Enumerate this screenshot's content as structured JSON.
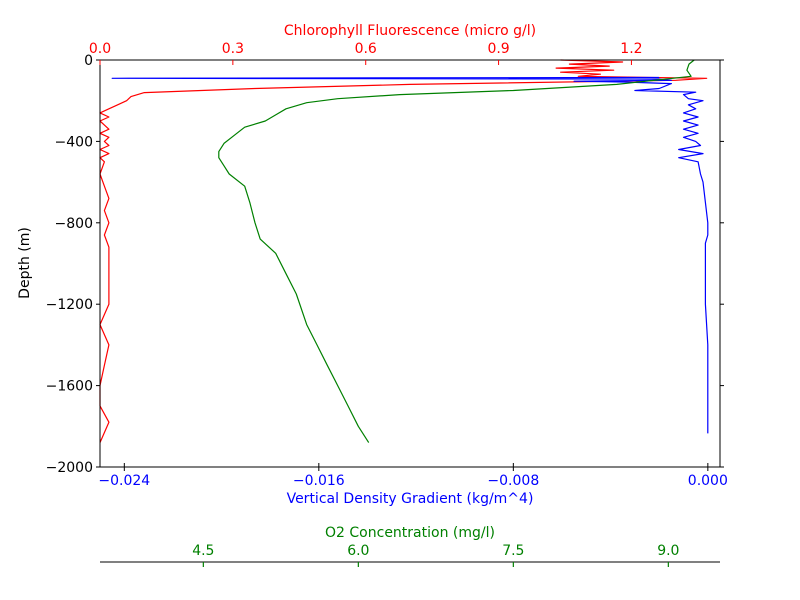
{
  "chart_data": {
    "type": "line",
    "ylabel": "Depth (m)",
    "ylim": [
      -2000,
      0
    ],
    "y_ticks": [
      "0",
      "−400",
      "−800",
      "−1200",
      "−1600",
      "−2000"
    ],
    "y_tick_values": [
      0,
      -400,
      -800,
      -1200,
      -1600,
      -2000
    ],
    "axes": {
      "chlorophyll": {
        "label": "Chlorophyll Fluorescence (micro g/l)",
        "color": "#ff0000",
        "position": "top",
        "xlim": [
          0.0,
          1.4
        ],
        "ticks": [
          "0.0",
          "0.3",
          "0.6",
          "0.9",
          "1.2"
        ],
        "tick_values": [
          0.0,
          0.3,
          0.6,
          0.9,
          1.2
        ]
      },
      "density": {
        "label": "Vertical Density Gradient (kg/m^4)",
        "color": "#0000ff",
        "position": "bottom",
        "xlim": [
          -0.025,
          0.0005
        ],
        "ticks": [
          "−0.024",
          "−0.016",
          "−0.008",
          "0.000"
        ],
        "tick_values": [
          -0.024,
          -0.016,
          -0.008,
          0.0
        ]
      },
      "o2": {
        "label": "O2 Concentration (mg/l)",
        "color": "#008000",
        "position": "bottom-offset",
        "xlim": [
          3.5,
          9.5
        ],
        "ticks": [
          "4.5",
          "6.0",
          "7.5",
          "9.0"
        ],
        "tick_values": [
          4.5,
          6.0,
          7.5,
          9.0
        ]
      }
    },
    "series": [
      {
        "axis": "chlorophyll",
        "color": "#ff0000",
        "points": [
          [
            1.04,
            0
          ],
          [
            1.18,
            -10
          ],
          [
            1.06,
            -20
          ],
          [
            1.15,
            -30
          ],
          [
            1.03,
            -40
          ],
          [
            1.16,
            -50
          ],
          [
            1.04,
            -60
          ],
          [
            1.13,
            -70
          ],
          [
            1.08,
            -80
          ],
          [
            1.37,
            -90
          ],
          [
            1.3,
            -100
          ],
          [
            0.7,
            -120
          ],
          [
            0.35,
            -140
          ],
          [
            0.1,
            -160
          ],
          [
            0.07,
            -180
          ],
          [
            0.06,
            -200
          ],
          [
            0.04,
            -220
          ],
          [
            0.02,
            -240
          ],
          [
            0.0,
            -260
          ],
          [
            0.02,
            -280
          ],
          [
            0.0,
            -300
          ],
          [
            0.01,
            -320
          ],
          [
            0.02,
            -340
          ],
          [
            0.0,
            -360
          ],
          [
            0.02,
            -380
          ],
          [
            0.01,
            -400
          ],
          [
            0.02,
            -420
          ],
          [
            0.0,
            -440
          ],
          [
            0.02,
            -460
          ],
          [
            0.0,
            -480
          ],
          [
            0.01,
            -500
          ],
          [
            0.0,
            -560
          ],
          [
            0.01,
            -620
          ],
          [
            0.02,
            -680
          ],
          [
            0.01,
            -740
          ],
          [
            0.02,
            -800
          ],
          [
            0.01,
            -860
          ],
          [
            0.02,
            -920
          ],
          [
            0.02,
            -1000
          ],
          [
            0.02,
            -1100
          ],
          [
            0.02,
            -1200
          ],
          [
            0.0,
            -1300
          ],
          [
            0.02,
            -1400
          ],
          [
            0.01,
            -1500
          ],
          [
            0.0,
            -1600
          ],
          [
            0.0,
            -1700
          ],
          [
            0.02,
            -1780
          ],
          [
            0.0,
            -1880
          ]
        ]
      },
      {
        "axis": "density",
        "color": "#0000ff",
        "points": [
          [
            -0.002,
            -86
          ],
          [
            -0.0245,
            -90
          ],
          [
            -0.002,
            -94
          ],
          [
            -0.0015,
            -100
          ],
          [
            -0.0055,
            -104
          ],
          [
            -0.0035,
            -108
          ],
          [
            -0.0015,
            -116
          ],
          [
            -0.002,
            -140
          ],
          [
            -0.003,
            -150
          ],
          [
            -0.0005,
            -158
          ],
          [
            -0.001,
            -170
          ],
          [
            -0.0008,
            -190
          ],
          [
            -0.0002,
            -200
          ],
          [
            -0.0008,
            -220
          ],
          [
            -0.0005,
            -240
          ],
          [
            -0.001,
            -260
          ],
          [
            -0.0004,
            -280
          ],
          [
            -0.001,
            -300
          ],
          [
            -0.0004,
            -320
          ],
          [
            -0.001,
            -340
          ],
          [
            -0.0004,
            -360
          ],
          [
            -0.001,
            -380
          ],
          [
            -0.0005,
            -400
          ],
          [
            -0.0003,
            -420
          ],
          [
            -0.0012,
            -440
          ],
          [
            -0.0002,
            -460
          ],
          [
            -0.0012,
            -480
          ],
          [
            -0.0004,
            -500
          ],
          [
            -0.0003,
            -560
          ],
          [
            -0.0002,
            -600
          ],
          [
            -0.0001,
            -700
          ],
          [
            0.0,
            -800
          ],
          [
            0.0,
            -860
          ],
          [
            -0.0001,
            -900
          ],
          [
            -0.0001,
            -1000
          ],
          [
            -0.0001,
            -1200
          ],
          [
            0.0,
            -1400
          ],
          [
            0.0,
            -1600
          ],
          [
            0.0,
            -1835
          ]
        ]
      },
      {
        "axis": "o2",
        "color": "#008000",
        "points": [
          [
            9.25,
            0
          ],
          [
            9.2,
            -20
          ],
          [
            9.18,
            -50
          ],
          [
            9.22,
            -80
          ],
          [
            8.5,
            -120
          ],
          [
            7.5,
            -150
          ],
          [
            6.4,
            -170
          ],
          [
            5.8,
            -190
          ],
          [
            5.5,
            -210
          ],
          [
            5.3,
            -240
          ],
          [
            5.2,
            -270
          ],
          [
            5.1,
            -300
          ],
          [
            4.9,
            -330
          ],
          [
            4.8,
            -370
          ],
          [
            4.7,
            -410
          ],
          [
            4.65,
            -450
          ],
          [
            4.65,
            -480
          ],
          [
            4.7,
            -520
          ],
          [
            4.75,
            -560
          ],
          [
            4.9,
            -620
          ],
          [
            4.95,
            -700
          ],
          [
            5.0,
            -800
          ],
          [
            5.05,
            -880
          ],
          [
            5.2,
            -950
          ],
          [
            5.3,
            -1050
          ],
          [
            5.4,
            -1150
          ],
          [
            5.5,
            -1300
          ],
          [
            5.6,
            -1400
          ],
          [
            5.7,
            -1500
          ],
          [
            5.8,
            -1600
          ],
          [
            5.9,
            -1700
          ],
          [
            6.0,
            -1800
          ],
          [
            6.1,
            -1880
          ]
        ]
      }
    ]
  }
}
